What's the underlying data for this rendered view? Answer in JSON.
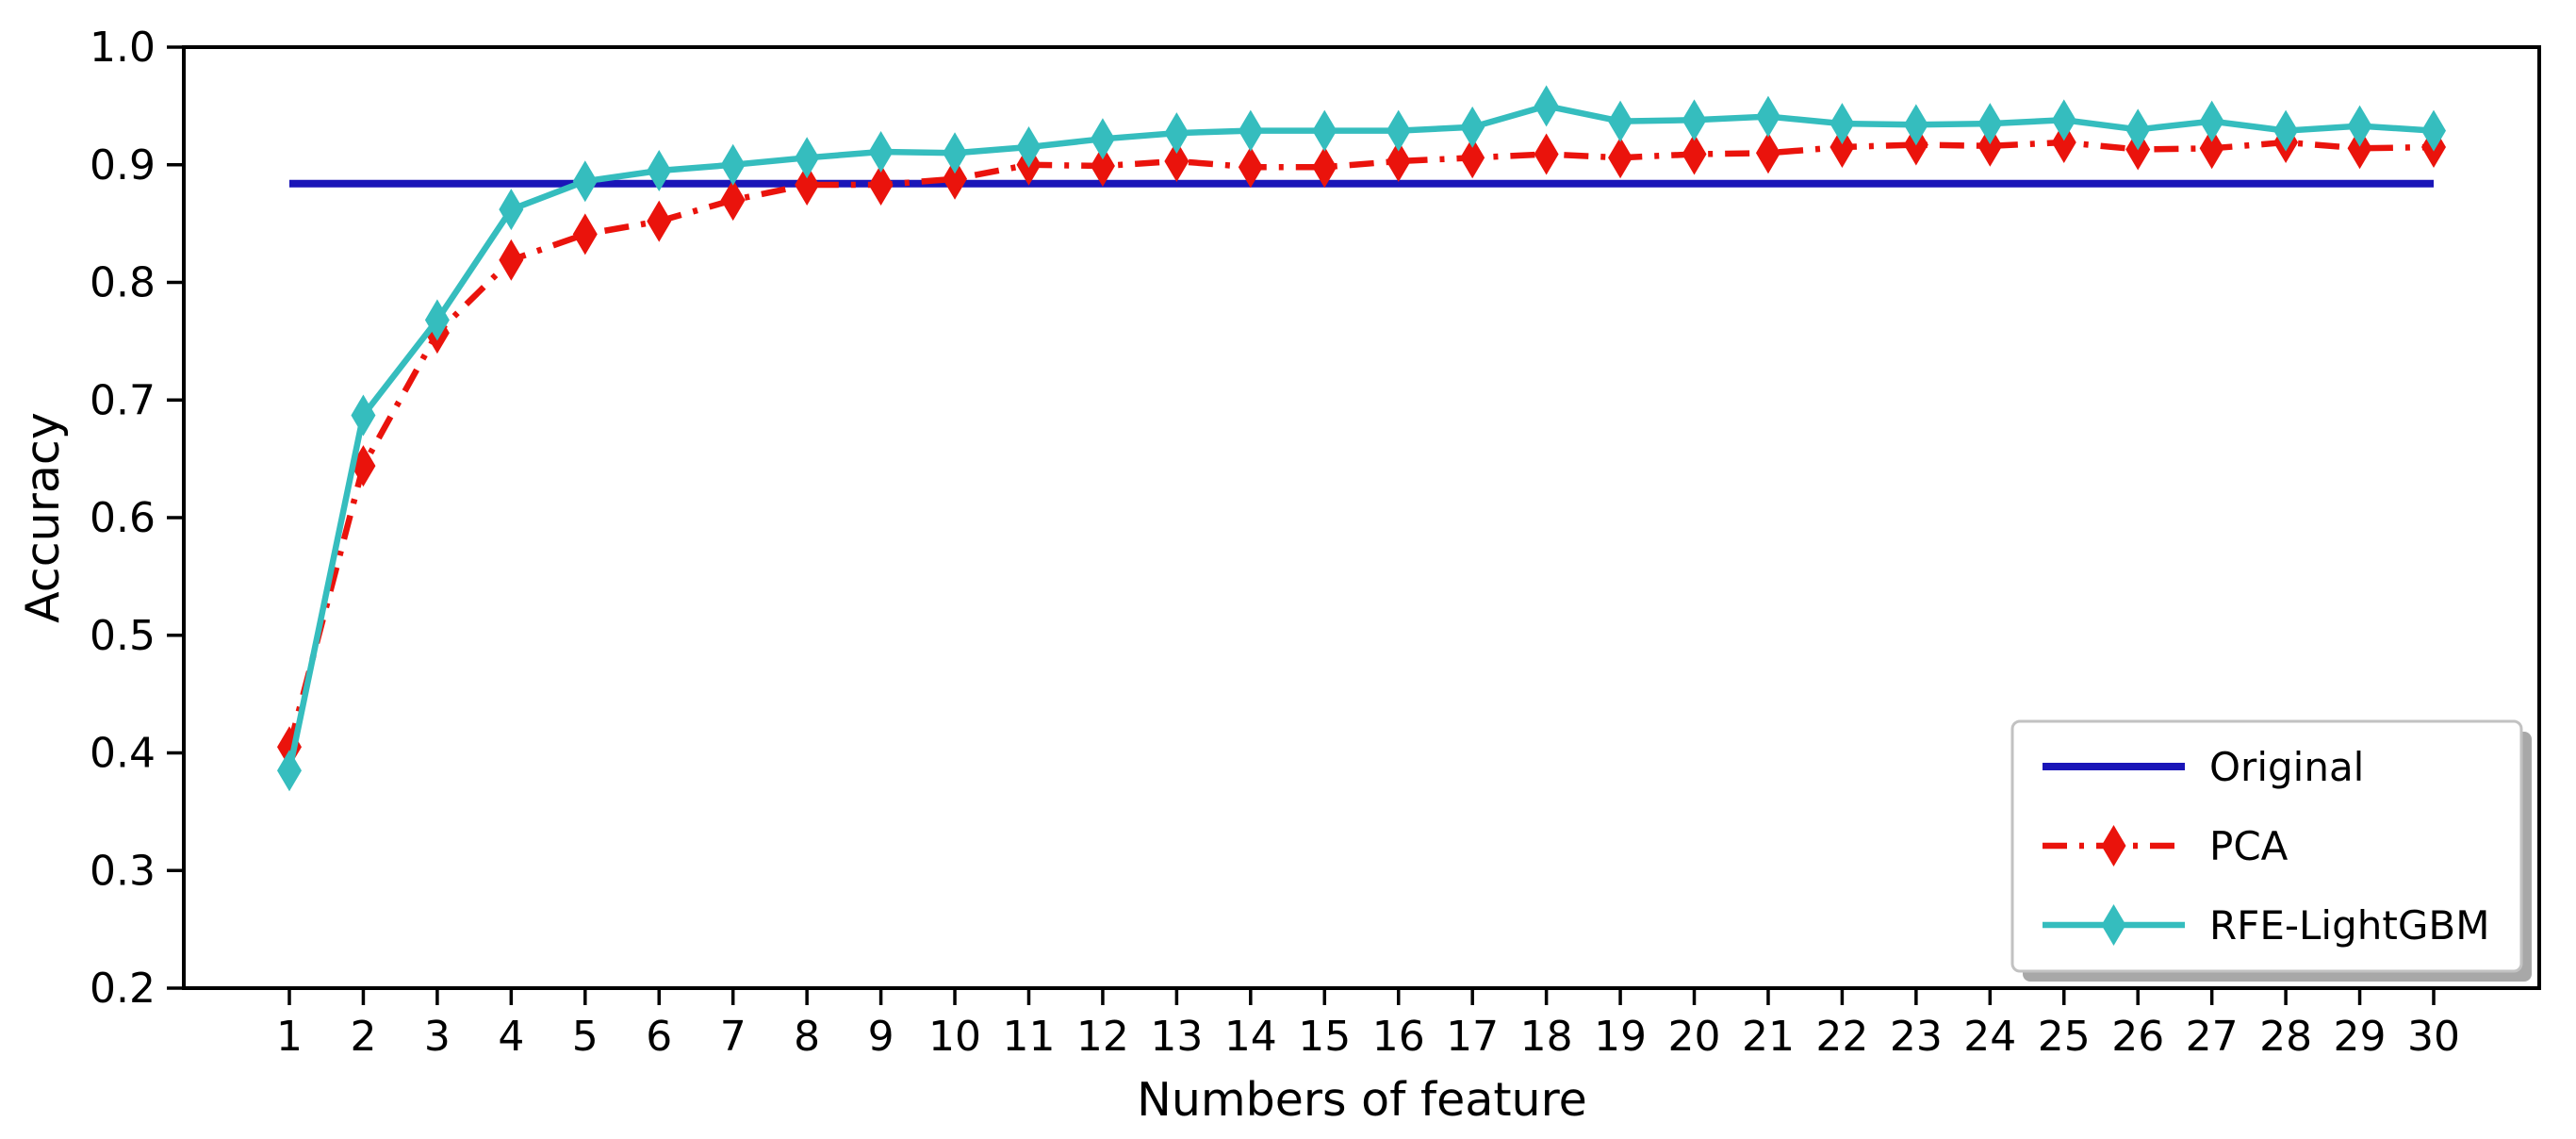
{
  "figure": {
    "background": "#ffffff"
  },
  "chart_data": {
    "type": "line",
    "title": "",
    "xlabel": "Numbers of feature",
    "ylabel": "Accuracy",
    "x": [
      1,
      2,
      3,
      4,
      5,
      6,
      7,
      8,
      9,
      10,
      11,
      12,
      13,
      14,
      15,
      16,
      17,
      18,
      19,
      20,
      21,
      22,
      23,
      24,
      25,
      26,
      27,
      28,
      29,
      30
    ],
    "ylim": [
      0.2,
      1.0
    ],
    "yticks": [
      "0.2",
      "0.3",
      "0.4",
      "0.5",
      "0.6",
      "0.7",
      "0.8",
      "0.9",
      "1.0"
    ],
    "grid": false,
    "legend": {
      "position": "lower right",
      "background": "#ffffff",
      "border_color": "#c2c2c2",
      "shadow_color": "#a8a8a8"
    },
    "series": [
      {
        "name": "Original",
        "color": "#1a15b8",
        "line_style": "solid",
        "marker": "none",
        "values": [
          0.884,
          0.884,
          0.884,
          0.884,
          0.884,
          0.884,
          0.884,
          0.884,
          0.884,
          0.884,
          0.884,
          0.884,
          0.884,
          0.884,
          0.884,
          0.884,
          0.884,
          0.884,
          0.884,
          0.884,
          0.884,
          0.884,
          0.884,
          0.884,
          0.884,
          0.884,
          0.884,
          0.884,
          0.884,
          0.884
        ]
      },
      {
        "name": "PCA",
        "color": "#ea130c",
        "line_style": "dashdot",
        "marker": "thin-diamond",
        "values": [
          0.405,
          0.644,
          0.757,
          0.819,
          0.841,
          0.852,
          0.87,
          0.883,
          0.883,
          0.888,
          0.9,
          0.899,
          0.903,
          0.898,
          0.898,
          0.903,
          0.906,
          0.909,
          0.906,
          0.909,
          0.91,
          0.915,
          0.917,
          0.916,
          0.919,
          0.913,
          0.914,
          0.919,
          0.914,
          0.915
        ]
      },
      {
        "name": "RFE-LightGBM",
        "color": "#35bdbe",
        "line_style": "solid",
        "marker": "thin-diamond",
        "values": [
          0.385,
          0.687,
          0.768,
          0.862,
          0.886,
          0.895,
          0.9,
          0.906,
          0.911,
          0.91,
          0.915,
          0.922,
          0.927,
          0.929,
          0.929,
          0.929,
          0.932,
          0.95,
          0.937,
          0.938,
          0.941,
          0.935,
          0.934,
          0.935,
          0.938,
          0.93,
          0.937,
          0.929,
          0.933,
          0.929
        ]
      }
    ]
  }
}
